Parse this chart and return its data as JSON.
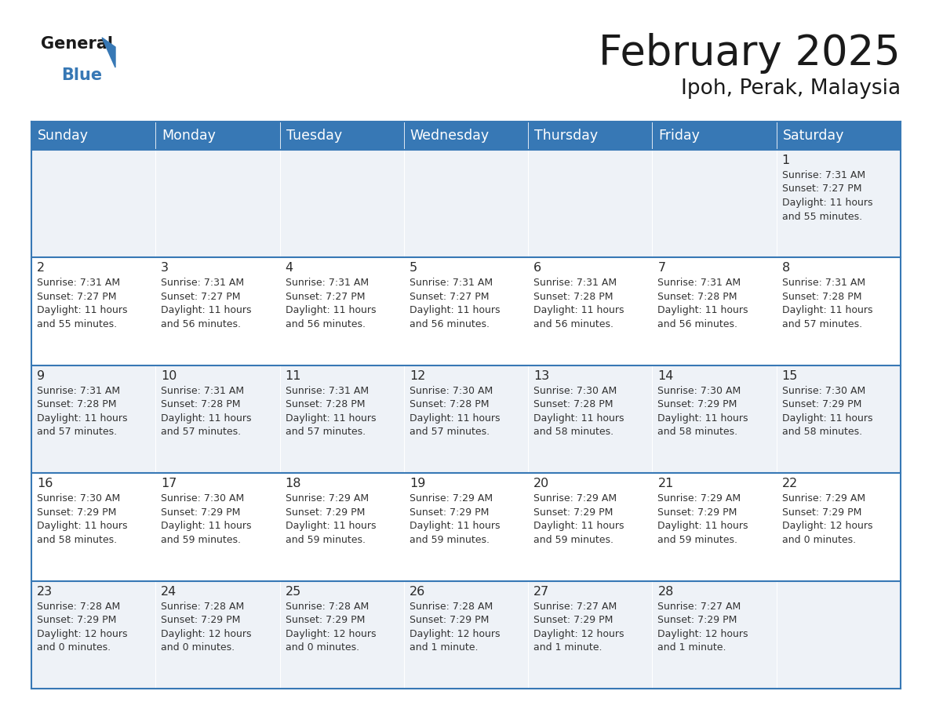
{
  "title": "February 2025",
  "subtitle": "Ipoh, Perak, Malaysia",
  "header_color": "#3778b5",
  "header_text_color": "#ffffff",
  "cell_bg_even": "#eef2f7",
  "cell_bg_odd": "#ffffff",
  "border_color": "#3778b5",
  "text_color": "#333333",
  "days_of_week": [
    "Sunday",
    "Monday",
    "Tuesday",
    "Wednesday",
    "Thursday",
    "Friday",
    "Saturday"
  ],
  "weeks": [
    [
      {
        "day": null,
        "sunrise": null,
        "sunset": null,
        "daylight": null
      },
      {
        "day": null,
        "sunrise": null,
        "sunset": null,
        "daylight": null
      },
      {
        "day": null,
        "sunrise": null,
        "sunset": null,
        "daylight": null
      },
      {
        "day": null,
        "sunrise": null,
        "sunset": null,
        "daylight": null
      },
      {
        "day": null,
        "sunrise": null,
        "sunset": null,
        "daylight": null
      },
      {
        "day": null,
        "sunrise": null,
        "sunset": null,
        "daylight": null
      },
      {
        "day": 1,
        "sunrise": "7:31 AM",
        "sunset": "7:27 PM",
        "daylight": "11 hours\nand 55 minutes."
      }
    ],
    [
      {
        "day": 2,
        "sunrise": "7:31 AM",
        "sunset": "7:27 PM",
        "daylight": "11 hours\nand 55 minutes."
      },
      {
        "day": 3,
        "sunrise": "7:31 AM",
        "sunset": "7:27 PM",
        "daylight": "11 hours\nand 56 minutes."
      },
      {
        "day": 4,
        "sunrise": "7:31 AM",
        "sunset": "7:27 PM",
        "daylight": "11 hours\nand 56 minutes."
      },
      {
        "day": 5,
        "sunrise": "7:31 AM",
        "sunset": "7:27 PM",
        "daylight": "11 hours\nand 56 minutes."
      },
      {
        "day": 6,
        "sunrise": "7:31 AM",
        "sunset": "7:28 PM",
        "daylight": "11 hours\nand 56 minutes."
      },
      {
        "day": 7,
        "sunrise": "7:31 AM",
        "sunset": "7:28 PM",
        "daylight": "11 hours\nand 56 minutes."
      },
      {
        "day": 8,
        "sunrise": "7:31 AM",
        "sunset": "7:28 PM",
        "daylight": "11 hours\nand 57 minutes."
      }
    ],
    [
      {
        "day": 9,
        "sunrise": "7:31 AM",
        "sunset": "7:28 PM",
        "daylight": "11 hours\nand 57 minutes."
      },
      {
        "day": 10,
        "sunrise": "7:31 AM",
        "sunset": "7:28 PM",
        "daylight": "11 hours\nand 57 minutes."
      },
      {
        "day": 11,
        "sunrise": "7:31 AM",
        "sunset": "7:28 PM",
        "daylight": "11 hours\nand 57 minutes."
      },
      {
        "day": 12,
        "sunrise": "7:30 AM",
        "sunset": "7:28 PM",
        "daylight": "11 hours\nand 57 minutes."
      },
      {
        "day": 13,
        "sunrise": "7:30 AM",
        "sunset": "7:28 PM",
        "daylight": "11 hours\nand 58 minutes."
      },
      {
        "day": 14,
        "sunrise": "7:30 AM",
        "sunset": "7:29 PM",
        "daylight": "11 hours\nand 58 minutes."
      },
      {
        "day": 15,
        "sunrise": "7:30 AM",
        "sunset": "7:29 PM",
        "daylight": "11 hours\nand 58 minutes."
      }
    ],
    [
      {
        "day": 16,
        "sunrise": "7:30 AM",
        "sunset": "7:29 PM",
        "daylight": "11 hours\nand 58 minutes."
      },
      {
        "day": 17,
        "sunrise": "7:30 AM",
        "sunset": "7:29 PM",
        "daylight": "11 hours\nand 59 minutes."
      },
      {
        "day": 18,
        "sunrise": "7:29 AM",
        "sunset": "7:29 PM",
        "daylight": "11 hours\nand 59 minutes."
      },
      {
        "day": 19,
        "sunrise": "7:29 AM",
        "sunset": "7:29 PM",
        "daylight": "11 hours\nand 59 minutes."
      },
      {
        "day": 20,
        "sunrise": "7:29 AM",
        "sunset": "7:29 PM",
        "daylight": "11 hours\nand 59 minutes."
      },
      {
        "day": 21,
        "sunrise": "7:29 AM",
        "sunset": "7:29 PM",
        "daylight": "11 hours\nand 59 minutes."
      },
      {
        "day": 22,
        "sunrise": "7:29 AM",
        "sunset": "7:29 PM",
        "daylight": "12 hours\nand 0 minutes."
      }
    ],
    [
      {
        "day": 23,
        "sunrise": "7:28 AM",
        "sunset": "7:29 PM",
        "daylight": "12 hours\nand 0 minutes."
      },
      {
        "day": 24,
        "sunrise": "7:28 AM",
        "sunset": "7:29 PM",
        "daylight": "12 hours\nand 0 minutes."
      },
      {
        "day": 25,
        "sunrise": "7:28 AM",
        "sunset": "7:29 PM",
        "daylight": "12 hours\nand 0 minutes."
      },
      {
        "day": 26,
        "sunrise": "7:28 AM",
        "sunset": "7:29 PM",
        "daylight": "12 hours\nand 1 minute."
      },
      {
        "day": 27,
        "sunrise": "7:27 AM",
        "sunset": "7:29 PM",
        "daylight": "12 hours\nand 1 minute."
      },
      {
        "day": 28,
        "sunrise": "7:27 AM",
        "sunset": "7:29 PM",
        "daylight": "12 hours\nand 1 minute."
      },
      {
        "day": null,
        "sunrise": null,
        "sunset": null,
        "daylight": null
      }
    ]
  ]
}
